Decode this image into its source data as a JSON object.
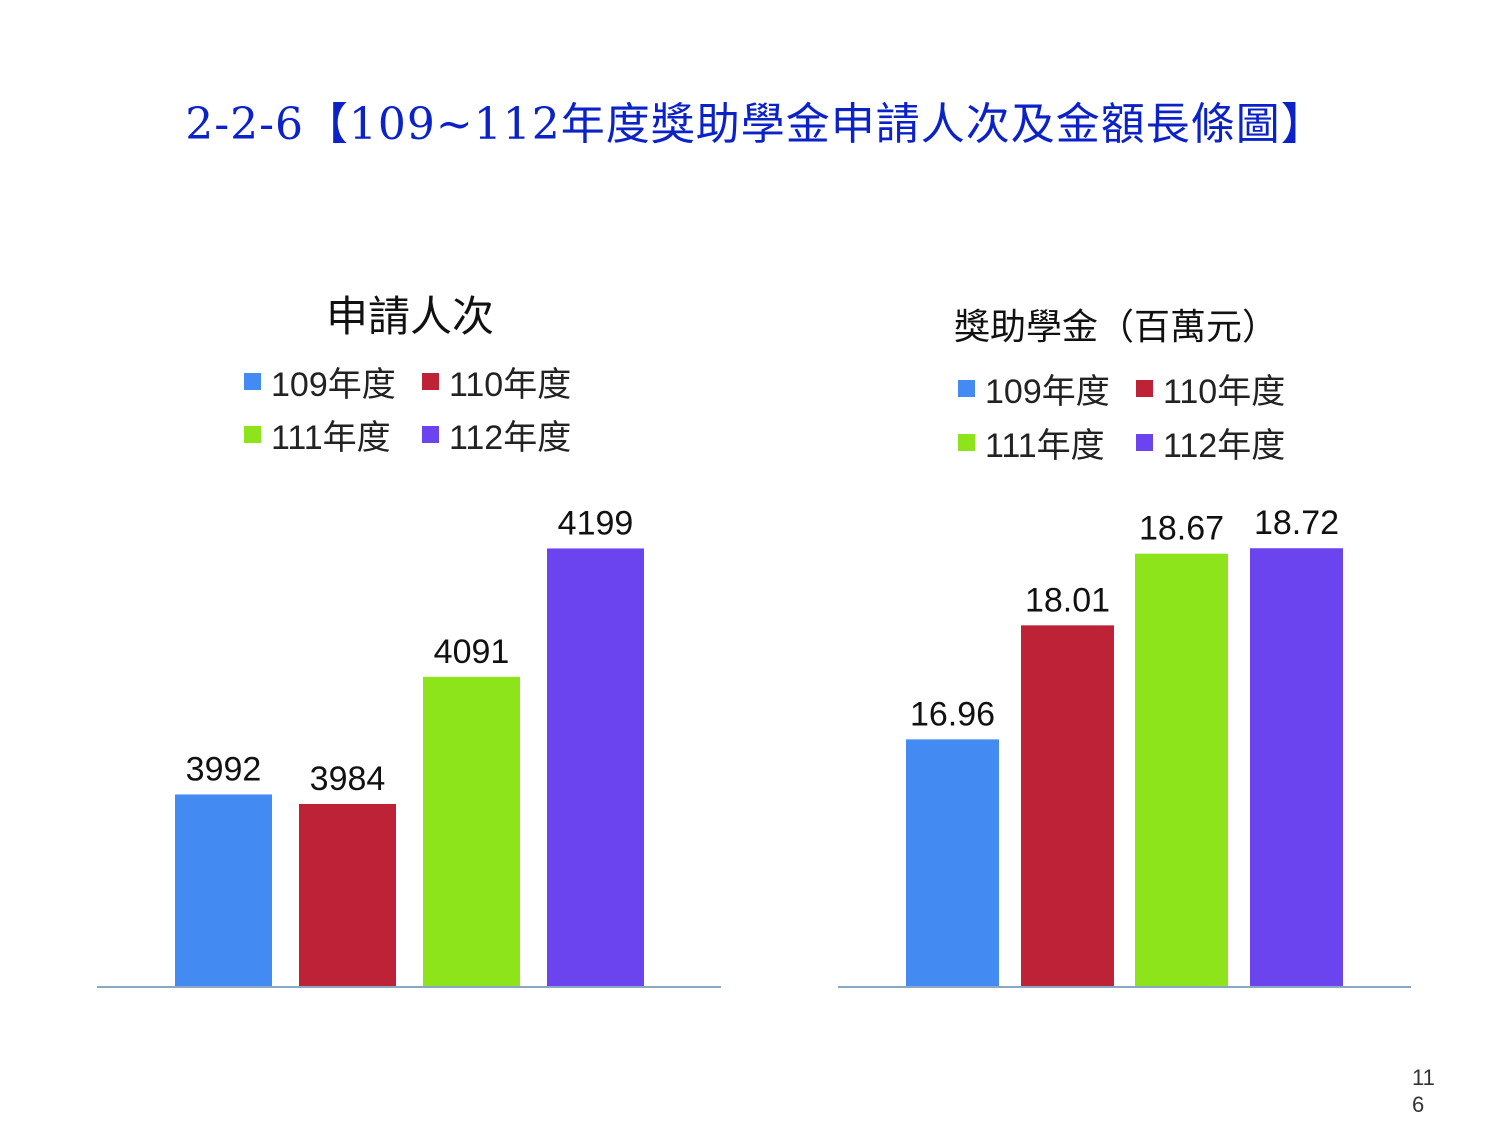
{
  "page_title": "2-2-6【109~112年度獎助學金申請人次及金額長條圖】",
  "page_number": "116",
  "colors": {
    "title": "#0b22c8",
    "series": [
      "#438af3",
      "#bd2236",
      "#8ee41b",
      "#6b44ef"
    ],
    "baseline": "#8aa8c2"
  },
  "chart_data": [
    {
      "type": "bar",
      "title": "申請人次",
      "categories": [
        "109年度",
        "110年度",
        "111年度",
        "112年度"
      ],
      "values": [
        3992,
        3984,
        4091,
        4199
      ],
      "ylim": [
        3830,
        4212
      ],
      "legend": [
        "109年度",
        "110年度",
        "111年度",
        "112年度"
      ],
      "legend_position": "top",
      "grid": false
    },
    {
      "type": "bar",
      "title": "獎助學金（百萬元）",
      "categories": [
        "109年度",
        "110年度",
        "111年度",
        "112年度"
      ],
      "values": [
        16.96,
        18.01,
        18.67,
        18.72
      ],
      "ylim": [
        14.68,
        18.98
      ],
      "legend": [
        "109年度",
        "110年度",
        "111年度",
        "112年度"
      ],
      "legend_position": "top",
      "grid": false
    }
  ]
}
